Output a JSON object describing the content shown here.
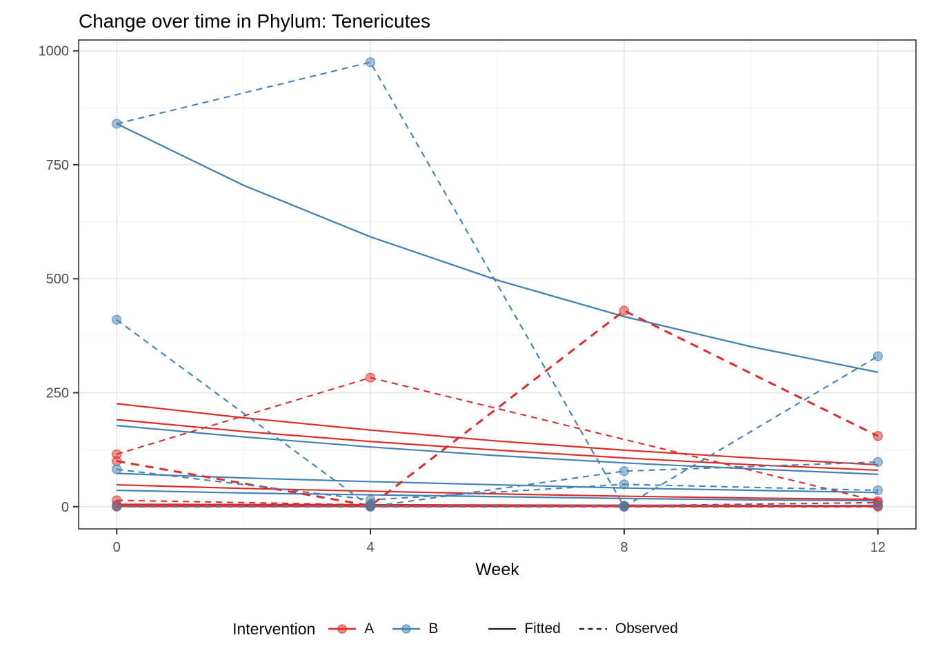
{
  "title": "Change over time in Phylum: Tenericutes",
  "axes": {
    "x": {
      "label": "Week",
      "ticks": [
        0,
        4,
        8,
        12
      ],
      "minor": [
        2,
        6,
        10
      ],
      "domain": [
        -0.6,
        12.6
      ]
    },
    "y": {
      "ticks": [
        0,
        250,
        500,
        750,
        1000
      ],
      "minor": [
        125,
        375,
        625,
        875
      ],
      "domain": [
        -48.75,
        1023.75
      ]
    }
  },
  "colors": {
    "A": "#DF2B27",
    "B": "#4181B6",
    "key_line": "#1a1a1a",
    "axis_text": "#4d4d4d",
    "grid_major": "#e4e4e4",
    "grid_minor": "#f1f1f1",
    "panel_border": "#333333"
  },
  "legend": {
    "title": "Intervention",
    "interventions": [
      {
        "label": "A"
      },
      {
        "label": "B"
      }
    ],
    "linetypes": [
      {
        "label": "Fitted",
        "style": "solid"
      },
      {
        "label": "Observed",
        "style": "dashed"
      }
    ]
  },
  "chart_data": {
    "type": "line",
    "title": "Change over time in Phylum: Tenericutes",
    "xlabel": "Week",
    "ylabel": "",
    "xlim": [
      0,
      12
    ],
    "ylim": [
      0,
      1000
    ],
    "grid": true,
    "legend_position": "bottom",
    "series": [
      {
        "id": "A1-fitted",
        "intervention": "A",
        "linetype": "fitted",
        "x": [
          0,
          2,
          4,
          6,
          8,
          10,
          12
        ],
        "y": [
          226,
          195,
          168,
          144,
          124,
          107,
          92
        ],
        "lw": 2.2
      },
      {
        "id": "A2-fitted",
        "intervention": "A",
        "linetype": "fitted",
        "x": [
          0,
          2,
          4,
          6,
          8,
          10,
          12
        ],
        "y": [
          191,
          165,
          143,
          124,
          107,
          92,
          80
        ],
        "lw": 2.2
      },
      {
        "id": "A3-fitted",
        "intervention": "A",
        "linetype": "fitted",
        "x": [
          0,
          2,
          4,
          6,
          8,
          10,
          12
        ],
        "y": [
          48,
          40,
          34,
          28,
          23,
          19,
          16
        ],
        "lw": 2.2
      },
      {
        "id": "A4-fitted",
        "intervention": "A",
        "linetype": "fitted",
        "x": [
          0,
          4,
          8,
          12
        ],
        "y": [
          5,
          4,
          3,
          2
        ],
        "lw": 2.4
      },
      {
        "id": "A5-fitted",
        "intervention": "A",
        "linetype": "fitted",
        "x": [
          0,
          4,
          8,
          12
        ],
        "y": [
          1,
          1,
          1,
          1
        ],
        "lw": 2.8
      },
      {
        "id": "B1-fitted",
        "intervention": "B",
        "linetype": "fitted",
        "x": [
          0,
          2,
          4,
          6,
          8,
          10,
          12
        ],
        "y": [
          840,
          705,
          592,
          497,
          417,
          351,
          295
        ],
        "lw": 2.3
      },
      {
        "id": "B2-fitted",
        "intervention": "B",
        "linetype": "fitted",
        "x": [
          0,
          2,
          4,
          6,
          8,
          10,
          12
        ],
        "y": [
          178,
          153,
          131,
          112,
          96,
          83,
          71
        ],
        "lw": 2.2
      },
      {
        "id": "B3-fitted",
        "intervention": "B",
        "linetype": "fitted",
        "x": [
          0,
          2,
          4,
          6,
          8,
          10,
          12
        ],
        "y": [
          73,
          63,
          55,
          48,
          41,
          36,
          31
        ],
        "lw": 2.2
      },
      {
        "id": "B4-fitted",
        "intervention": "B",
        "linetype": "fitted",
        "x": [
          0,
          2,
          4,
          6,
          8,
          10,
          12
        ],
        "y": [
          36,
          30,
          26,
          22,
          18,
          15,
          13
        ],
        "lw": 2.2
      },
      {
        "id": "A1-observed",
        "intervention": "A",
        "linetype": "observed",
        "x": [
          0,
          4,
          12
        ],
        "y": [
          115,
          283,
          12
        ],
        "lw": 2.1
      },
      {
        "id": "A2-observed",
        "intervention": "A",
        "linetype": "observed",
        "x": [
          0,
          4,
          8,
          12
        ],
        "y": [
          100,
          2,
          430,
          155
        ],
        "lw": 3.0
      },
      {
        "id": "A3-observed",
        "intervention": "A",
        "linetype": "observed",
        "x": [
          0,
          4,
          8,
          12
        ],
        "y": [
          14,
          4,
          2,
          9
        ],
        "lw": 2.1
      },
      {
        "id": "A4-observed",
        "intervention": "A",
        "linetype": "observed",
        "x": [
          0,
          4,
          8,
          12
        ],
        "y": [
          3,
          2,
          1,
          2
        ],
        "lw": 2.1
      },
      {
        "id": "A5-observed",
        "intervention": "A",
        "linetype": "observed",
        "x": [
          0,
          4,
          8,
          12
        ],
        "y": [
          0,
          0,
          0,
          0
        ],
        "lw": 2.4
      },
      {
        "id": "B1-observed",
        "intervention": "B",
        "linetype": "observed",
        "x": [
          0,
          4,
          8,
          12
        ],
        "y": [
          840,
          975,
          0,
          330
        ],
        "lw": 2.1
      },
      {
        "id": "B2-observed",
        "intervention": "B",
        "linetype": "observed",
        "x": [
          0,
          4,
          8,
          12
        ],
        "y": [
          410,
          0,
          78,
          98
        ],
        "lw": 2.1
      },
      {
        "id": "B3-observed",
        "intervention": "B",
        "linetype": "observed",
        "x": [
          0,
          4,
          8,
          12
        ],
        "y": [
          82,
          15,
          49,
          36
        ],
        "lw": 2.1
      },
      {
        "id": "B4-observed",
        "intervention": "B",
        "linetype": "observed",
        "x": [
          0,
          4,
          8,
          12
        ],
        "y": [
          1,
          1,
          2,
          3
        ],
        "lw": 2.1
      }
    ]
  }
}
